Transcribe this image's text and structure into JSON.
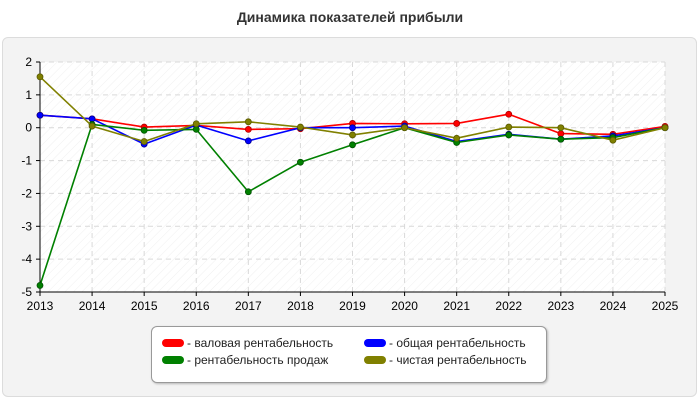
{
  "chart_data": {
    "type": "line",
    "title": "Динамика показателей прибыли",
    "xlabel": "",
    "ylabel": "",
    "x": [
      "2013",
      "2014",
      "2015",
      "2016",
      "2017",
      "2018",
      "2019",
      "2020",
      "2021",
      "2022",
      "2023",
      "2024",
      "2025"
    ],
    "ylim": [
      -5,
      2
    ],
    "yticks": [
      "2",
      "1",
      "0",
      "-1",
      "-2",
      "-3",
      "-4",
      "-5"
    ],
    "grid": true,
    "legend_position": "bottom",
    "series": [
      {
        "name": "- валовая рентабельность",
        "color": "#ff0000",
        "dark": "#b00000",
        "values": [
          0.38,
          0.27,
          0.02,
          0.07,
          -0.05,
          -0.03,
          0.13,
          0.12,
          0.13,
          0.41,
          -0.18,
          -0.2,
          0.04
        ]
      },
      {
        "name": "- общая рентабельность",
        "color": "#0000ff",
        "dark": "#00008b",
        "values": [
          0.38,
          0.27,
          -0.5,
          0.08,
          -0.4,
          0.0,
          0.0,
          0.05,
          -0.42,
          -0.2,
          -0.35,
          -0.25,
          0.0
        ]
      },
      {
        "name": "- рентабельность продаж",
        "color": "#008000",
        "dark": "#005000",
        "values": [
          -4.8,
          0.1,
          -0.08,
          -0.05,
          -1.95,
          -1.05,
          -0.52,
          0.0,
          -0.45,
          -0.22,
          -0.35,
          -0.3,
          0.0
        ]
      },
      {
        "name": "- чистая рентабельность",
        "color": "#808000",
        "dark": "#5a5a00",
        "values": [
          1.55,
          0.05,
          -0.42,
          0.12,
          0.18,
          0.02,
          -0.22,
          0.0,
          -0.32,
          0.02,
          0.0,
          -0.38,
          0.0
        ]
      }
    ]
  }
}
